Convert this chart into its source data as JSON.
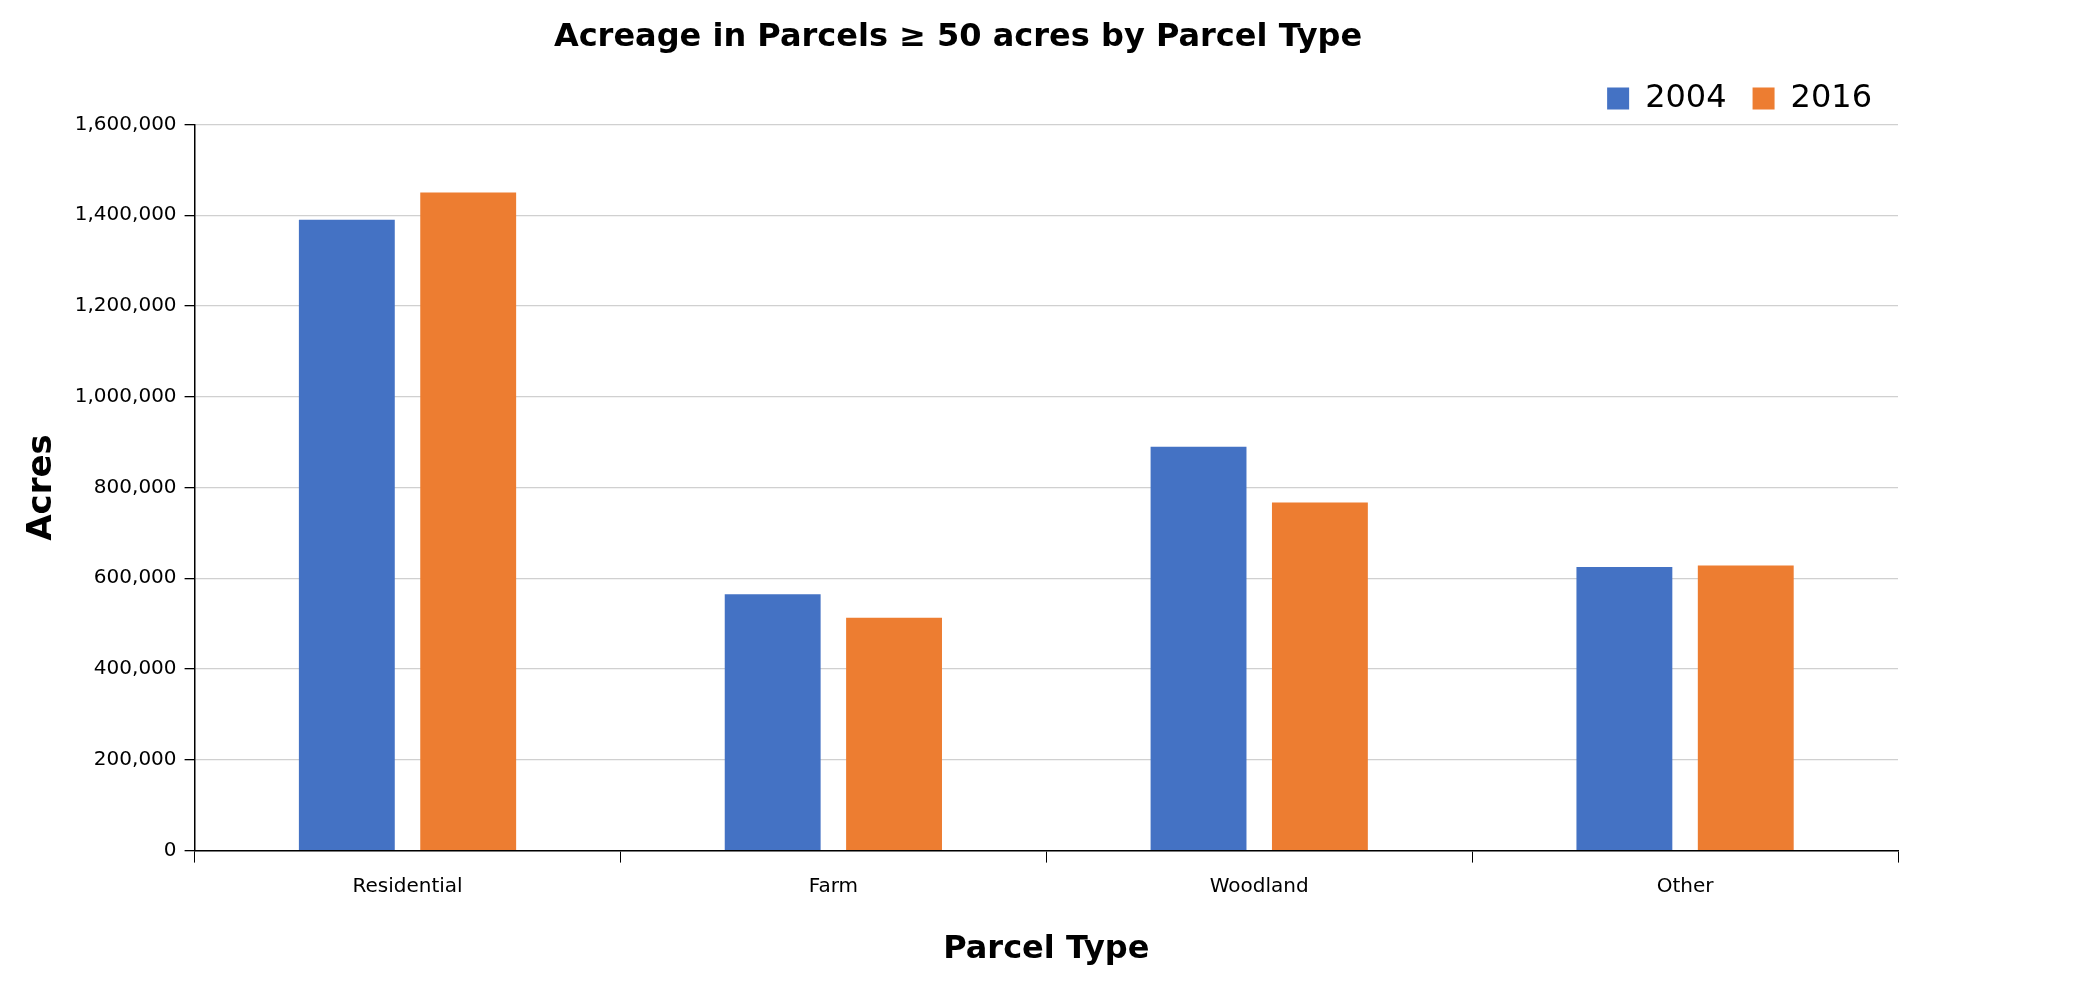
{
  "chart_data": {
    "type": "bar",
    "title": "Acreage in Parcels ≥ 50 acres by Parcel Type",
    "xlabel": "Parcel Type",
    "ylabel": "Acres",
    "categories": [
      "Residential",
      "Farm",
      "Woodland",
      "Other"
    ],
    "series": [
      {
        "name": "2004",
        "color": "#4472c4",
        "values": [
          1390000,
          565000,
          890000,
          625000
        ]
      },
      {
        "name": "2016",
        "color": "#ed7d31",
        "values": [
          1450000,
          513000,
          767000,
          628000
        ]
      }
    ],
    "ylim": [
      0,
      1600000
    ],
    "yticks": [
      0,
      {
        "value": 200000,
        "label": "200,000"
      },
      {
        "value": 400000,
        "label": "400,000"
      },
      {
        "value": 600000,
        "label": "600,000"
      },
      {
        "value": 800000,
        "label": "800,000"
      },
      {
        "value": 1000000,
        "label": "1,000,000"
      },
      {
        "value": 1200000,
        "label": "1,200,000"
      },
      {
        "value": 1400000,
        "label": "1,400,000"
      },
      {
        "value": 1600000,
        "label": "1,600,000"
      }
    ],
    "grid": "y",
    "legend": "top right"
  }
}
